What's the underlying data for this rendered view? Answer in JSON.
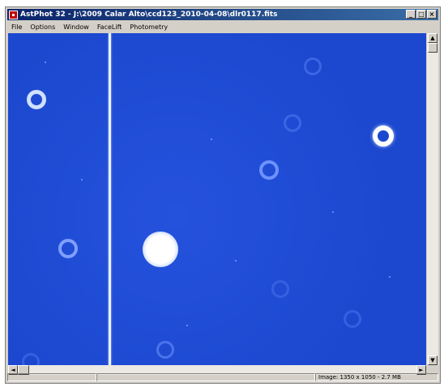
{
  "window": {
    "title": "AstPhot 32 - J:\\2009 Calar Alto\\ccd123_2010-04-08\\dlr0117.fits",
    "minimize_label": "_",
    "restore_label": "□",
    "close_label": "×"
  },
  "menu": {
    "items": [
      "File",
      "Options",
      "Window",
      "FaceLift",
      "Photometry"
    ]
  },
  "scroll": {
    "up_label": "▲",
    "down_label": "▼",
    "left_label": "◄",
    "right_label": "►"
  },
  "status": {
    "left": "",
    "middle": "",
    "image_info": "Image: 1350 x 1050 - 2.7 MB"
  },
  "colors": {
    "sky": "#1e4dd6",
    "title_bar": "#0a246a",
    "star": "#ffffff"
  }
}
